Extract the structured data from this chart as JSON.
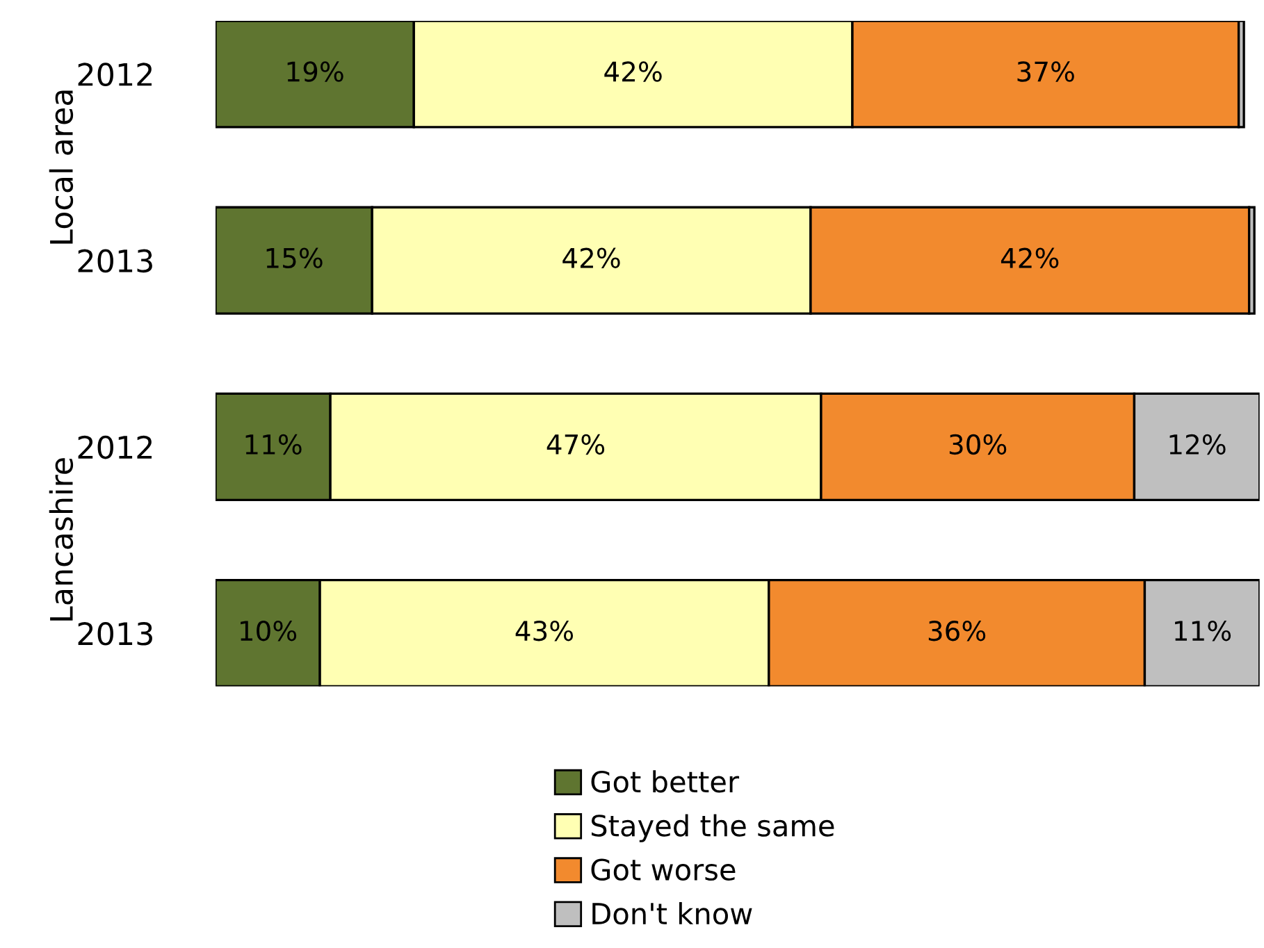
{
  "chart_data": {
    "type": "bar",
    "orientation": "horizontal",
    "stacked": true,
    "categories": [
      "2012",
      "2013",
      "2012",
      "2013"
    ],
    "annotations": [
      "Local area",
      "Lancashire"
    ],
    "xlim": [
      0,
      100
    ],
    "tick_labels": "y",
    "legend": "bottom",
    "grid": false,
    "series": [
      {
        "name": "Got better",
        "color": "#5f7530",
        "values": [
          19,
          15,
          11,
          10
        ],
        "value_labels": [
          "19%",
          "15%",
          "11%",
          "10%"
        ]
      },
      {
        "name": "Stayed the same",
        "color": "#ffffb3",
        "values": [
          42,
          42,
          47,
          43
        ],
        "value_labels": [
          "42%",
          "42%",
          "47%",
          "43%"
        ]
      },
      {
        "name": "Got worse",
        "color": "#f28a2e",
        "values": [
          37,
          42,
          30,
          36
        ],
        "value_labels": [
          "37%",
          "42%",
          "30%",
          "36%"
        ]
      },
      {
        "name": "Don't know",
        "color": "#bfbfbf",
        "values": [
          0.5,
          0.5,
          12,
          11
        ],
        "value_labels": [
          null,
          null,
          "12%",
          "11%"
        ]
      }
    ]
  }
}
